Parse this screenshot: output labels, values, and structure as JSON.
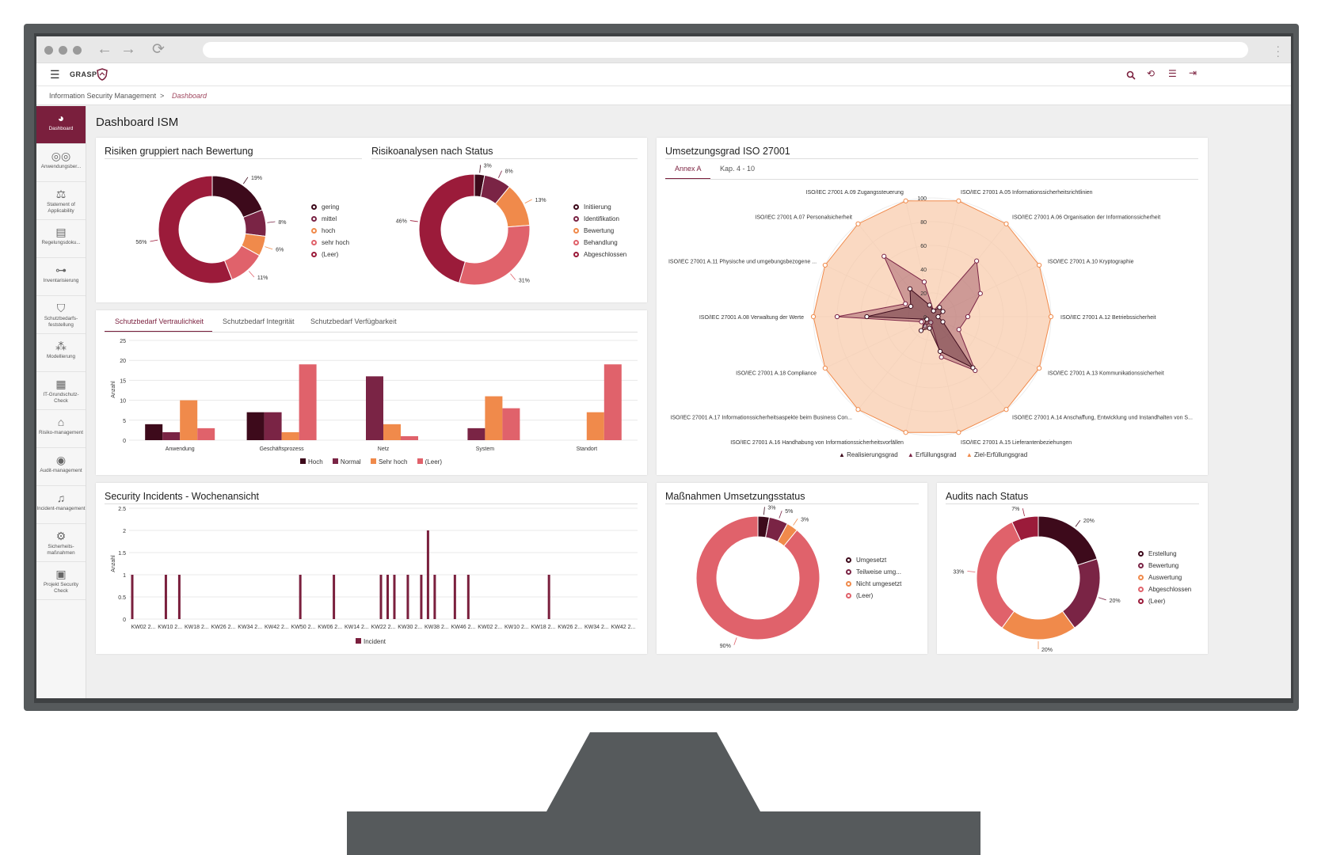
{
  "app": {
    "brand": "GRASP"
  },
  "breadcrumb": {
    "root": "Information Security Management",
    "separator": ">",
    "current": "Dashboard"
  },
  "page": {
    "title": "Dashboard ISM"
  },
  "colors": {
    "c1": "#3d0a1b",
    "c2": "#7a2445",
    "c3": "#f08a4b",
    "c4": "#e0626b",
    "c5": "#9b1b3a",
    "accent": "#7a1f3d",
    "radar_fill": "#f8c9a8",
    "radar_line": "#f08a4b"
  },
  "sidebar": {
    "items": [
      {
        "label": "Dashboard",
        "icon": "pie-chart-icon"
      },
      {
        "label": "Anwendungsber...",
        "icon": "glasses-icon"
      },
      {
        "label": "Statement of Applicability",
        "icon": "scales-icon"
      },
      {
        "label": "Regelungsdoku...",
        "icon": "document-icon"
      },
      {
        "label": "Inventarisierung",
        "icon": "network-icon"
      },
      {
        "label": "Schutzbedarfs-feststellung",
        "icon": "shield-icon"
      },
      {
        "label": "Modellierung",
        "icon": "blocks-icon"
      },
      {
        "label": "IT-Grundschutz-Check",
        "icon": "checklist-icon"
      },
      {
        "label": "Risiko-management",
        "icon": "house-icon"
      },
      {
        "label": "Audit-management",
        "icon": "eye-icon"
      },
      {
        "label": "Incident-management",
        "icon": "bell-icon"
      },
      {
        "label": "Sicherheits-maßnahmen",
        "icon": "gears-icon"
      },
      {
        "label": "Projekt Security Check",
        "icon": "lock-icon"
      }
    ]
  },
  "risiken": {
    "title": "Risiken gruppiert nach Bewertung",
    "chart_data": {
      "type": "pie",
      "labels": [
        "gering",
        "mittel",
        "hoch",
        "sehr hoch",
        "(Leer)"
      ],
      "values": [
        19,
        8,
        6,
        11,
        56
      ],
      "value_labels": [
        "19%",
        "8%",
        "6%",
        "11%",
        "56%"
      ]
    }
  },
  "risikoanalysen": {
    "title": "Risikoanalysen nach Status",
    "chart_data": {
      "type": "pie",
      "labels": [
        "Initiierung",
        "Identifikation",
        "Bewertung",
        "Behandlung",
        "Abgeschlossen"
      ],
      "values": [
        3,
        8,
        13,
        31,
        46
      ],
      "value_labels": [
        "3%",
        "8%",
        "13%",
        "31%",
        "46%"
      ]
    }
  },
  "umsetzung": {
    "title": "Umsetzungsgrad ISO 27001",
    "tabs": [
      "Annex A",
      "Kap. 4 - 10"
    ],
    "chart_data": {
      "type": "radar",
      "axes": [
        "ISO/IEC 27001 A.05 Informationssicherheitsrichtlinien",
        "ISO/IEC 27001 A.06 Organisation der Informationssicherheit",
        "ISO/IEC 27001 A.10 Kryptographie",
        "ISO/IEC 27001 A.12 Betriebssicherheit",
        "ISO/IEC 27001 A.13 Kommunikationssicherheit",
        "ISO/IEC 27001 A.14 Anschaffung, Entwicklung und Instandhalten von S...",
        "ISO/IEC 27001 A.15 Lieferantenbeziehungen",
        "ISO/IEC 27001 A.16 Handhabung von Informationssicherheitsvorfällen",
        "ISO/IEC 27001 A.17 Informationssicherheitsaspekte beim Business Con...",
        "ISO/IEC 27001 A.18 Compliance",
        "ISO/IEC 27001 A.08 Verwaltung der Werte",
        "ISO/IEC 27001 A.11 Physische und umgebungsbezogene ...",
        "ISO/IEC 27001 A.07 Personalsicherheit",
        "ISO/IEC 27001 A.09 Zugangssteuerung"
      ],
      "ticks": [
        "0",
        "20",
        "40",
        "60",
        "80",
        "100"
      ],
      "series": [
        {
          "name": "Realisierungsgrad",
          "values": [
            5,
            10,
            10,
            5,
            10,
            55,
            30,
            10,
            15,
            5,
            55,
            20,
            30,
            10
          ]
        },
        {
          "name": "Erfüllungsgrad",
          "values": [
            5,
            60,
            45,
            30,
            25,
            58,
            35,
            5,
            10,
            10,
            80,
            25,
            65,
            30
          ]
        },
        {
          "name": "Ziel-Erfüllungsgrad",
          "values": [
            100,
            100,
            100,
            100,
            100,
            100,
            100,
            100,
            100,
            100,
            100,
            100,
            100,
            100
          ]
        }
      ]
    }
  },
  "schutzbedarf": {
    "tabs": [
      "Schutzbedarf Vertraulichkeit",
      "Schutzbedarf Integrität",
      "Schutzbedarf Verfügbarkeit"
    ],
    "chart_data": {
      "type": "bar",
      "categories": [
        "Anwendung",
        "Geschäftsprozess",
        "Netz",
        "System",
        "Standort"
      ],
      "ylabel": "Anzahl",
      "ylim": [
        0,
        25
      ],
      "yticks": [
        "0",
        "5",
        "10",
        "15",
        "20",
        "25"
      ],
      "series": [
        {
          "name": "Hoch",
          "values": [
            4,
            7,
            0,
            0,
            0
          ]
        },
        {
          "name": "Normal",
          "values": [
            2,
            7,
            16,
            3,
            0
          ]
        },
        {
          "name": "Sehr hoch",
          "values": [
            10,
            2,
            4,
            11,
            7
          ]
        },
        {
          "name": "(Leer)",
          "values": [
            3,
            19,
            1,
            8,
            19
          ]
        }
      ]
    }
  },
  "incidents": {
    "title": "Security Incidents - Wochenansicht",
    "chart_data": {
      "type": "bar",
      "ylabel": "Anzahl",
      "ylim": [
        0,
        2.5
      ],
      "yticks": [
        "0",
        "0.5",
        "1",
        "1.5",
        "2",
        "2.5"
      ],
      "xticks": [
        "KW02 2...",
        "KW10 2...",
        "KW18 2...",
        "KW26 2...",
        "KW34 2...",
        "KW42 2...",
        "KW50 2...",
        "KW06 2...",
        "KW14 2...",
        "KW22 2...",
        "KW30 2...",
        "KW38 2...",
        "KW46 2...",
        "KW02 2...",
        "KW10 2...",
        "KW18 2...",
        "KW26 2...",
        "KW34 2...",
        "KW42 2..."
      ],
      "series": [
        {
          "name": "Incident",
          "points": [
            [
              0,
              1
            ],
            [
              5,
              1
            ],
            [
              7,
              1
            ],
            [
              25,
              1
            ],
            [
              30,
              1
            ],
            [
              37,
              1
            ],
            [
              38,
              1
            ],
            [
              39,
              1
            ],
            [
              41,
              1
            ],
            [
              43,
              1
            ],
            [
              44,
              2
            ],
            [
              45,
              1
            ],
            [
              48,
              1
            ],
            [
              50,
              1
            ],
            [
              62,
              1
            ]
          ]
        }
      ],
      "x_range": [
        0,
        74
      ]
    }
  },
  "massnahmen": {
    "title": "Maßnahmen Umsetzungsstatus",
    "chart_data": {
      "type": "pie",
      "labels": [
        "Umgesetzt",
        "Teilweise umg...",
        "Nicht umgesetzt",
        "(Leer)"
      ],
      "values": [
        3,
        5,
        3,
        90
      ],
      "value_labels": [
        "3%",
        "5%",
        "3%",
        "90%"
      ]
    }
  },
  "audits": {
    "title": "Audits nach Status",
    "chart_data": {
      "type": "pie",
      "labels": [
        "Erstellung",
        "Bewertung",
        "Auswertung",
        "Abgeschlossen",
        "(Leer)"
      ],
      "values": [
        20,
        20,
        20,
        33,
        7
      ],
      "value_labels": [
        "20%",
        "20%",
        "20%",
        "33%",
        "7%"
      ]
    }
  }
}
